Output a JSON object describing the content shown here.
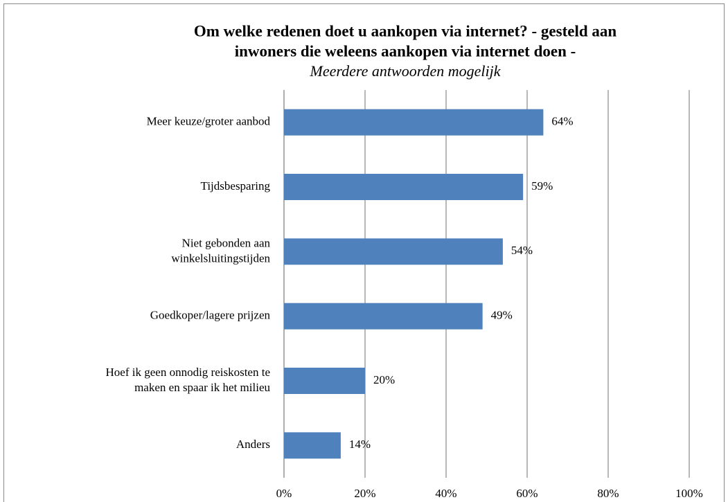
{
  "chart_data": {
    "type": "bar",
    "orientation": "horizontal",
    "title": [
      "Om welke redenen doet u aankopen via internet? - gesteld aan",
      "inwoners die weleens aankopen via internet doen -"
    ],
    "subtitle": "Meerdere antwoorden  mogelijk",
    "categories": [
      "Meer keuze/groter aanbod",
      "Tijdsbesparing",
      "Niet gebonden aan\nwinkelsluitingstijden",
      "Goedkoper/lagere prijzen",
      "Hoef ik geen onnodig reiskosten te\nmaken en spaar ik het milieu",
      "Anders"
    ],
    "values": [
      64,
      59,
      54,
      49,
      20,
      14
    ],
    "value_labels": [
      "64%",
      "59%",
      "54%",
      "49%",
      "20%",
      "14%"
    ],
    "color": "#4f81bd",
    "xlim": [
      0,
      100
    ],
    "xticks": [
      {
        "value": 0,
        "label": "0%"
      },
      {
        "value": 20,
        "label": "20%"
      },
      {
        "value": 40,
        "label": "40%"
      },
      {
        "value": 60,
        "label": "60%"
      },
      {
        "value": 80,
        "label": "80%"
      },
      {
        "value": 100,
        "label": "100%"
      }
    ],
    "grid": true
  }
}
